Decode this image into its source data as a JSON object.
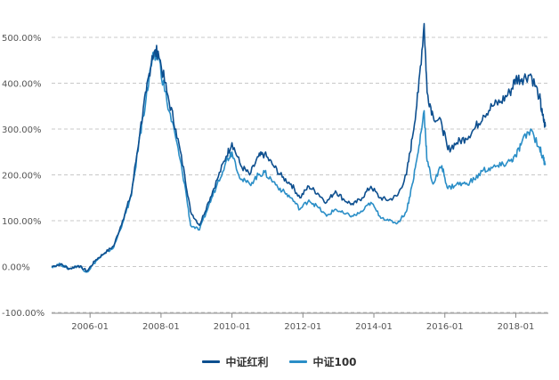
{
  "chart_data": {
    "type": "line",
    "title": "",
    "xlabel": "",
    "ylabel": "",
    "y_ticks": [
      "-100.00%",
      "0.00%",
      "100.00%",
      "200.00%",
      "300.00%",
      "400.00%",
      "500.00%"
    ],
    "y_tick_values": [
      -100,
      0,
      100,
      200,
      300,
      400,
      500
    ],
    "ylim": [
      -100,
      530
    ],
    "x_ticks": [
      "2006-01",
      "2008-01",
      "2010-01",
      "2012-01",
      "2014-01",
      "2016-01",
      "2018-01"
    ],
    "xlim": [
      "2004-12",
      "2018-12"
    ],
    "grid": true,
    "legend_position": "bottom-center",
    "x": [
      "2004-12",
      "2005-03",
      "2005-06",
      "2005-09",
      "2005-12",
      "2006-03",
      "2006-06",
      "2006-09",
      "2006-12",
      "2007-03",
      "2007-06",
      "2007-08",
      "2007-10",
      "2007-12",
      "2008-03",
      "2008-06",
      "2008-09",
      "2008-11",
      "2009-02",
      "2009-05",
      "2009-08",
      "2009-11",
      "2010-01",
      "2010-04",
      "2010-07",
      "2010-10",
      "2010-12",
      "2011-03",
      "2011-06",
      "2011-09",
      "2011-12",
      "2012-03",
      "2012-06",
      "2012-09",
      "2012-12",
      "2013-03",
      "2013-06",
      "2013-09",
      "2013-12",
      "2014-03",
      "2014-06",
      "2014-09",
      "2014-12",
      "2015-02",
      "2015-04",
      "2015-06",
      "2015-07",
      "2015-09",
      "2015-12",
      "2016-02",
      "2016-05",
      "2016-08",
      "2016-11",
      "2017-02",
      "2017-05",
      "2017-08",
      "2017-11",
      "2018-01",
      "2018-03",
      "2018-06",
      "2018-09",
      "2018-10",
      "2018-11"
    ],
    "series": [
      {
        "name": "中证红利",
        "color": "#0d4f8f",
        "values": [
          0,
          5,
          -5,
          2,
          -10,
          15,
          30,
          45,
          100,
          160,
          300,
          380,
          460,
          470,
          380,
          300,
          200,
          120,
          90,
          140,
          190,
          240,
          270,
          220,
          200,
          240,
          245,
          220,
          195,
          180,
          150,
          175,
          160,
          140,
          165,
          145,
          135,
          150,
          175,
          150,
          145,
          155,
          200,
          280,
          380,
          530,
          380,
          330,
          310,
          255,
          270,
          280,
          300,
          330,
          350,
          360,
          380,
          410,
          410,
          420,
          370,
          330,
          305
        ]
      },
      {
        "name": "中证100",
        "color": "#2a8ec7",
        "values": [
          0,
          5,
          -5,
          2,
          -12,
          12,
          28,
          42,
          95,
          155,
          290,
          370,
          450,
          460,
          360,
          280,
          180,
          90,
          80,
          130,
          180,
          230,
          250,
          190,
          180,
          200,
          205,
          185,
          165,
          150,
          125,
          145,
          130,
          110,
          125,
          115,
          110,
          120,
          140,
          110,
          100,
          95,
          120,
          180,
          250,
          340,
          230,
          180,
          220,
          170,
          180,
          180,
          190,
          210,
          215,
          220,
          230,
          240,
          270,
          300,
          260,
          240,
          225
        ]
      }
    ]
  }
}
